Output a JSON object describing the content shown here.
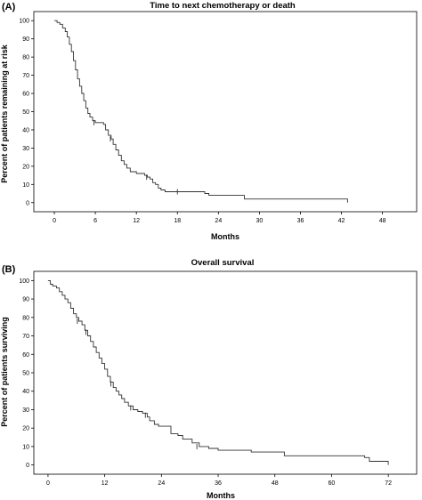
{
  "chart_data": [
    {
      "type": "line",
      "panel": "(A)",
      "title": "Time to next chemotherapy or death",
      "xlabel": "Months",
      "ylabel": "Percent of patients remaining at risk",
      "xlim": [
        -3,
        53
      ],
      "ylim": [
        -5,
        105
      ],
      "xticks": [
        0,
        6,
        12,
        18,
        24,
        30,
        36,
        42,
        48
      ],
      "yticks": [
        0,
        10,
        20,
        30,
        40,
        50,
        60,
        70,
        80,
        90,
        100
      ],
      "grid": false,
      "step": true,
      "series": [
        {
          "points": [
            [
              0,
              100
            ],
            [
              0.4,
              99
            ],
            [
              0.8,
              98
            ],
            [
              1.2,
              96
            ],
            [
              1.6,
              94
            ],
            [
              1.9,
              91
            ],
            [
              2.2,
              87
            ],
            [
              2.5,
              83
            ],
            [
              2.8,
              78
            ],
            [
              3.1,
              73
            ],
            [
              3.4,
              68
            ],
            [
              3.7,
              64
            ],
            [
              4.0,
              60
            ],
            [
              4.3,
              56
            ],
            [
              4.6,
              52
            ],
            [
              4.9,
              49
            ],
            [
              5.2,
              47
            ],
            [
              5.6,
              45
            ],
            [
              6.0,
              44
            ],
            [
              7.2,
              43
            ],
            [
              7.5,
              40
            ],
            [
              7.9,
              37
            ],
            [
              8.3,
              35
            ],
            [
              8.6,
              32
            ],
            [
              9.0,
              29
            ],
            [
              9.4,
              26
            ],
            [
              9.8,
              23
            ],
            [
              10.2,
              21
            ],
            [
              10.6,
              19
            ],
            [
              11.1,
              17
            ],
            [
              12.0,
              16
            ],
            [
              13.2,
              15
            ],
            [
              13.6,
              14
            ],
            [
              14.0,
              13
            ],
            [
              14.4,
              11
            ],
            [
              14.8,
              10
            ],
            [
              15.2,
              8
            ],
            [
              15.6,
              7
            ],
            [
              16.2,
              6
            ],
            [
              22.0,
              5
            ],
            [
              22.6,
              4
            ],
            [
              27.8,
              2
            ],
            [
              42.6,
              2
            ],
            [
              42.9,
              0
            ]
          ],
          "censored": [
            [
              5.8,
              44
            ],
            [
              8.2,
              35
            ],
            [
              13.5,
              14
            ],
            [
              18.0,
              6
            ]
          ]
        }
      ]
    },
    {
      "type": "line",
      "panel": "(B)",
      "title": "Overall survival",
      "xlabel": "Months",
      "ylabel": "Percent of patients surviving",
      "xlim": [
        -3,
        78
      ],
      "ylim": [
        -5,
        105
      ],
      "xticks": [
        0,
        12,
        24,
        36,
        48,
        60,
        72
      ],
      "yticks": [
        0,
        10,
        20,
        30,
        40,
        50,
        60,
        70,
        80,
        90,
        100
      ],
      "grid": false,
      "step": true,
      "series": [
        {
          "points": [
            [
              0,
              100
            ],
            [
              0.5,
              98
            ],
            [
              1.0,
              97
            ],
            [
              1.8,
              96
            ],
            [
              2.4,
              94
            ],
            [
              3.0,
              92
            ],
            [
              3.6,
              90
            ],
            [
              4.2,
              88
            ],
            [
              4.8,
              85
            ],
            [
              5.4,
              82
            ],
            [
              6.0,
              80
            ],
            [
              6.5,
              78
            ],
            [
              7.2,
              76
            ],
            [
              7.8,
              73
            ],
            [
              8.4,
              70
            ],
            [
              9.0,
              67
            ],
            [
              9.6,
              64
            ],
            [
              10.2,
              61
            ],
            [
              10.8,
              58
            ],
            [
              11.4,
              55
            ],
            [
              12.0,
              52
            ],
            [
              12.6,
              48
            ],
            [
              13.2,
              45
            ],
            [
              13.8,
              42
            ],
            [
              14.4,
              40
            ],
            [
              15.0,
              38
            ],
            [
              15.6,
              36
            ],
            [
              16.2,
              34
            ],
            [
              17.0,
              32
            ],
            [
              18.0,
              30
            ],
            [
              19.0,
              29
            ],
            [
              20.0,
              28
            ],
            [
              21.0,
              26
            ],
            [
              21.5,
              24
            ],
            [
              22.5,
              22
            ],
            [
              23.4,
              21
            ],
            [
              26.0,
              17
            ],
            [
              27.5,
              16
            ],
            [
              28.5,
              14
            ],
            [
              30.5,
              12
            ],
            [
              32.0,
              10
            ],
            [
              34.0,
              9
            ],
            [
              36.0,
              8
            ],
            [
              43.0,
              7
            ],
            [
              50.0,
              5
            ],
            [
              57.0,
              5
            ],
            [
              67.0,
              4
            ],
            [
              68.0,
              2
            ],
            [
              71.5,
              2
            ],
            [
              72.0,
              0
            ]
          ],
          "censored": [
            [
              6.2,
              78
            ],
            [
              8.0,
              72
            ],
            [
              13.3,
              44
            ],
            [
              17.5,
              31
            ],
            [
              20.6,
              27
            ],
            [
              31.5,
              10
            ]
          ]
        }
      ]
    }
  ]
}
